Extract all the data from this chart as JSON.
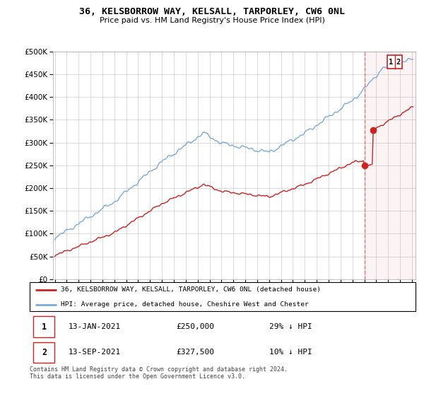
{
  "title": "36, KELSBORROW WAY, KELSALL, TARPORLEY, CW6 0NL",
  "subtitle": "Price paid vs. HM Land Registry's House Price Index (HPI)",
  "ylim": [
    0,
    500000
  ],
  "yticks": [
    0,
    50000,
    100000,
    150000,
    200000,
    250000,
    300000,
    350000,
    400000,
    450000,
    500000
  ],
  "xlim_start": 1995.0,
  "xlim_end": 2025.3,
  "transaction1_date": "13-JAN-2021",
  "transaction1_price": 250000,
  "transaction1_hpi_diff": "29% ↓ HPI",
  "transaction2_date": "13-SEP-2021",
  "transaction2_price": 327500,
  "transaction2_hpi_diff": "10% ↓ HPI",
  "legend1": "36, KELSBORROW WAY, KELSALL, TARPORLEY, CW6 0NL (detached house)",
  "legend2": "HPI: Average price, detached house, Cheshire West and Chester",
  "footnote": "Contains HM Land Registry data © Crown copyright and database right 2024.\nThis data is licensed under the Open Government Licence v3.0.",
  "hpi_color": "#7aabdb",
  "price_color": "#cc2222",
  "dashed_line_color": "#dd6666",
  "shade_color": "#f0e0e0",
  "background_color": "#ffffff",
  "grid_color": "#cccccc",
  "t1": 2021.04,
  "t2": 2021.71,
  "p1": 250000,
  "p2": 327500
}
